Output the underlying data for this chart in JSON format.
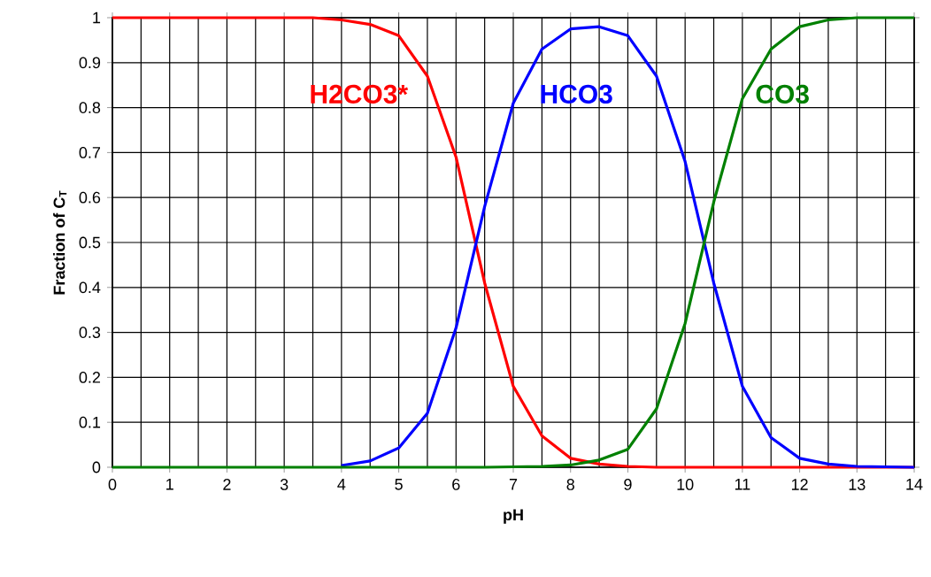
{
  "chart_data": {
    "type": "line",
    "xlabel": "pH",
    "ylabel": "Fraction of C$_{T}$",
    "xlim": [
      0,
      14
    ],
    "ylim": [
      0,
      1
    ],
    "xticks": [
      0,
      1,
      2,
      3,
      4,
      5,
      6,
      7,
      8,
      9,
      10,
      11,
      12,
      13,
      14
    ],
    "yticks": [
      0,
      0.1,
      0.2,
      0.3,
      0.4,
      0.5,
      0.6,
      0.7,
      0.8,
      0.9,
      1
    ],
    "grid": true,
    "legend": false,
    "marker": "none",
    "line_style": "solid",
    "x": [
      0,
      1,
      2,
      3,
      3.5,
      4,
      4.5,
      5,
      5.5,
      6,
      6.5,
      7,
      7.5,
      8,
      8.5,
      9,
      9.5,
      10,
      10.5,
      11,
      11.5,
      12,
      12.5,
      13,
      14
    ],
    "series": [
      {
        "name": "H2CO3*",
        "color": "#ff0000",
        "values": [
          1,
          1,
          1,
          1,
          1,
          0.995,
          0.985,
          0.96,
          0.87,
          0.69,
          0.41,
          0.18,
          0.07,
          0.02,
          0.007,
          0.002,
          0,
          0,
          0,
          0,
          0,
          0,
          0,
          0,
          0
        ]
      },
      {
        "name": "HCO3",
        "color": "#0000ff",
        "values": [
          null,
          null,
          null,
          null,
          null,
          0.004,
          0.014,
          0.043,
          0.12,
          0.31,
          0.58,
          0.81,
          0.93,
          0.975,
          0.98,
          0.96,
          0.87,
          0.68,
          0.41,
          0.18,
          0.066,
          0.02,
          0.007,
          0.002,
          0
        ]
      },
      {
        "name": "CO3",
        "color": "#008000",
        "values": [
          0,
          0,
          0,
          0,
          0,
          0,
          0,
          0,
          0,
          0,
          0,
          0.001,
          0.002,
          0.005,
          0.016,
          0.04,
          0.13,
          0.32,
          0.59,
          0.82,
          0.93,
          0.98,
          0.995,
          1,
          1
        ]
      }
    ]
  }
}
